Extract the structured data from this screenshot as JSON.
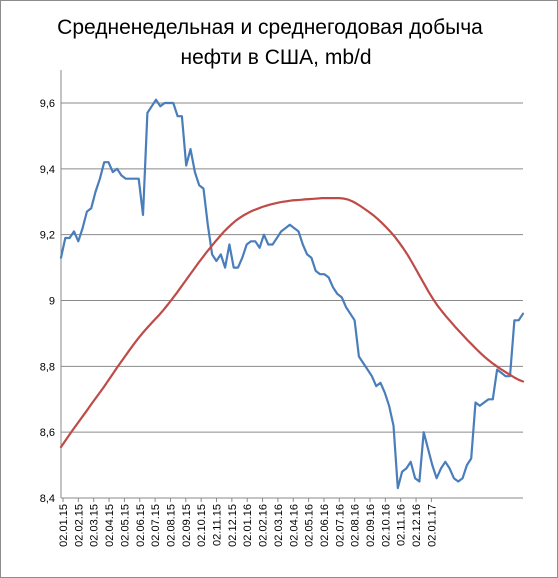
{
  "chart_data": {
    "type": "line",
    "title_line1": "Средненедельная и среднегодовая  добыча",
    "title_line2": "нефти в США, mb/d",
    "xlabel": "",
    "ylabel": "",
    "ylim": [
      8.4,
      9.7
    ],
    "y_ticks": [
      8.4,
      8.6,
      8.8,
      9.0,
      9.2,
      9.4,
      9.6
    ],
    "y_tick_labels": [
      "8,4",
      "8,6",
      "8,8",
      "9",
      "9,2",
      "9,4",
      "9,6"
    ],
    "x_tick_labels": [
      "02.01.15",
      "02.02.15",
      "02.03.15",
      "02.04.15",
      "02.05.15",
      "02.06.15",
      "02.07.15",
      "02.08.15",
      "02.09.15",
      "02.10.15",
      "02.11.15",
      "02.12.15",
      "02.01.16",
      "02.02.16",
      "02.03.16",
      "02.04.16",
      "02.05.16",
      "02.06.16",
      "02.07.16",
      "02.08.16",
      "02.09.16",
      "02.10.16",
      "02.11.16",
      "02.12.16",
      "02.01.17"
    ],
    "grid": "horizontal",
    "series": [
      {
        "name": "",
        "color": "#4a7ebb",
        "values": [
          9.13,
          9.19,
          9.19,
          9.21,
          9.18,
          9.22,
          9.27,
          9.28,
          9.33,
          9.37,
          9.42,
          9.42,
          9.39,
          9.4,
          9.38,
          9.37,
          9.37,
          9.37,
          9.37,
          9.26,
          9.57,
          9.59,
          9.61,
          9.59,
          9.6,
          9.6,
          9.6,
          9.56,
          9.56,
          9.41,
          9.46,
          9.39,
          9.35,
          9.34,
          9.23,
          9.14,
          9.12,
          9.14,
          9.1,
          9.17,
          9.1,
          9.1,
          9.13,
          9.17,
          9.18,
          9.18,
          9.16,
          9.2,
          9.17,
          9.17,
          9.19,
          9.21,
          9.22,
          9.23,
          9.22,
          9.21,
          9.17,
          9.14,
          9.13,
          9.09,
          9.08,
          9.08,
          9.07,
          9.04,
          9.02,
          9.01,
          8.98,
          8.96,
          8.94,
          8.83,
          8.81,
          8.79,
          8.77,
          8.74,
          8.75,
          8.72,
          8.68,
          8.62,
          8.43,
          8.48,
          8.49,
          8.51,
          8.46,
          8.45,
          8.6,
          8.55,
          8.5,
          8.46,
          8.49,
          8.51,
          8.49,
          8.46,
          8.45,
          8.46,
          8.5,
          8.52,
          8.69,
          8.68,
          8.69,
          8.7,
          8.7,
          8.79,
          8.78,
          8.77,
          8.77,
          8.94,
          8.94,
          8.96
        ]
      },
      {
        "name": "",
        "color": "#be4b48",
        "values": [
          8.555,
          8.574,
          8.593,
          8.611,
          8.629,
          8.647,
          8.665,
          8.683,
          8.701,
          8.719,
          8.737,
          8.756,
          8.775,
          8.794,
          8.813,
          8.831,
          8.849,
          8.867,
          8.884,
          8.9,
          8.915,
          8.929,
          8.943,
          8.957,
          8.972,
          8.988,
          9.005,
          9.022,
          9.04,
          9.058,
          9.076,
          9.094,
          9.112,
          9.129,
          9.146,
          9.162,
          9.178,
          9.193,
          9.208,
          9.221,
          9.233,
          9.244,
          9.253,
          9.261,
          9.268,
          9.274,
          9.279,
          9.284,
          9.288,
          9.292,
          9.295,
          9.298,
          9.3,
          9.302,
          9.304,
          9.305,
          9.306,
          9.307,
          9.308,
          9.309,
          9.31,
          9.311,
          9.311,
          9.311,
          9.311,
          9.311,
          9.31,
          9.307,
          9.302,
          9.295,
          9.287,
          9.278,
          9.269,
          9.259,
          9.248,
          9.236,
          9.223,
          9.209,
          9.194,
          9.177,
          9.159,
          9.139,
          9.117,
          9.094,
          9.071,
          9.048,
          9.025,
          9.004,
          8.985,
          8.968,
          8.952,
          8.937,
          8.922,
          8.908,
          8.894,
          8.88,
          8.867,
          8.854,
          8.841,
          8.829,
          8.818,
          8.808,
          8.799,
          8.79,
          8.782,
          8.774,
          8.766,
          8.759,
          8.754
        ]
      }
    ]
  }
}
